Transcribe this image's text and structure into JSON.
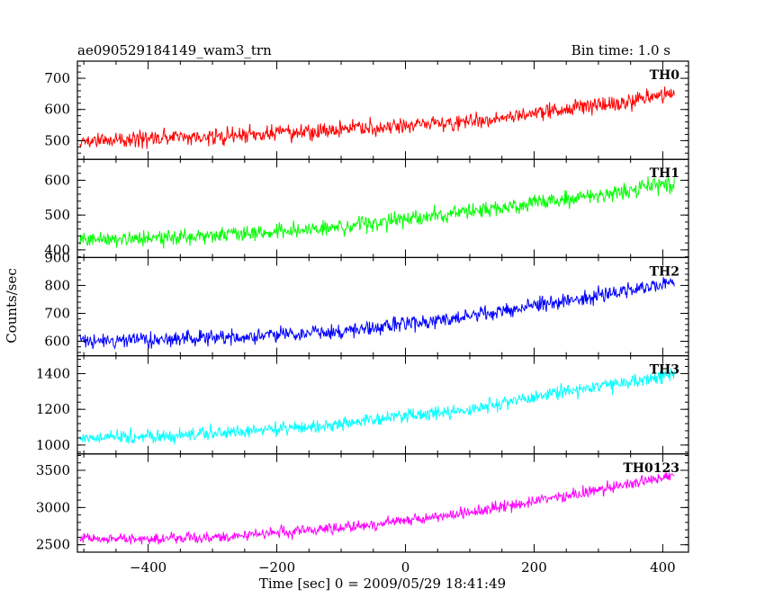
{
  "header": {
    "left_title": "ae090529184149_wam3_trn",
    "right_title": "Bin time: 1.0 s"
  },
  "chart_data": {
    "type": "line",
    "title": "ae090529184149_wam3_trn",
    "subtitle": "Bin time: 1.0 s",
    "xlabel": "Time [sec] 0 = 2009/05/29 18:41:49",
    "ylabel": "Counts/sec",
    "xlim": [
      -510,
      440
    ],
    "x_ticks": [
      -400,
      -200,
      0,
      200,
      400
    ],
    "x_tick_labels": [
      "−400",
      "−200",
      "0",
      "200",
      "400"
    ],
    "x_data_range": [
      -506,
      418
    ],
    "bin_time_s": 1.0,
    "grid": false,
    "legend": "none (panel labels at top-right of each panel)",
    "series": [
      {
        "name": "TH0",
        "color": "#ff0000",
        "ylim": [
          440,
          755
        ],
        "y_ticks": [
          500,
          600,
          700
        ],
        "y_tick_labels": [
          "500",
          "600",
          "700"
        ],
        "trend_anchors": [
          [
            -506,
            500
          ],
          [
            -300,
            515
          ],
          [
            -100,
            535
          ],
          [
            100,
            560
          ],
          [
            250,
            600
          ],
          [
            418,
            650
          ]
        ],
        "noise_amplitude": 38
      },
      {
        "name": "TH1",
        "color": "#00ff00",
        "ylim": [
          378,
          660
        ],
        "y_ticks": [
          400,
          500,
          600
        ],
        "y_tick_labels": [
          "400",
          "500",
          "600"
        ],
        "trend_anchors": [
          [
            -506,
            430
          ],
          [
            -300,
            440
          ],
          [
            -100,
            465
          ],
          [
            100,
            510
          ],
          [
            250,
            545
          ],
          [
            418,
            590
          ]
        ],
        "noise_amplitude": 32
      },
      {
        "name": "TH2",
        "color": "#0000ff",
        "ylim": [
          548,
          900
        ],
        "y_ticks": [
          600,
          700,
          800,
          900
        ],
        "y_tick_labels": [
          "600",
          "700",
          "800",
          "900"
        ],
        "trend_anchors": [
          [
            -506,
            600
          ],
          [
            -300,
            610
          ],
          [
            -100,
            635
          ],
          [
            100,
            690
          ],
          [
            250,
            745
          ],
          [
            418,
            815
          ]
        ],
        "noise_amplitude": 38
      },
      {
        "name": "TH3",
        "color": "#00ffff",
        "ylim": [
          950,
          1500
        ],
        "y_ticks": [
          1000,
          1200,
          1400
        ],
        "y_tick_labels": [
          "1000",
          "1200",
          "1400"
        ],
        "trend_anchors": [
          [
            -506,
            1040
          ],
          [
            -300,
            1060
          ],
          [
            -100,
            1120
          ],
          [
            100,
            1200
          ],
          [
            250,
            1300
          ],
          [
            418,
            1400
          ]
        ],
        "noise_amplitude": 55
      },
      {
        "name": "TH0123",
        "color": "#ff00ff",
        "ylim": [
          2400,
          3720
        ],
        "y_ticks": [
          2500,
          3000,
          3500
        ],
        "y_tick_labels": [
          "2500",
          "3000",
          "3500"
        ],
        "trend_anchors": [
          [
            -506,
            2570
          ],
          [
            -300,
            2600
          ],
          [
            -100,
            2720
          ],
          [
            100,
            2930
          ],
          [
            250,
            3160
          ],
          [
            418,
            3430
          ]
        ],
        "noise_amplitude": 110
      }
    ]
  }
}
